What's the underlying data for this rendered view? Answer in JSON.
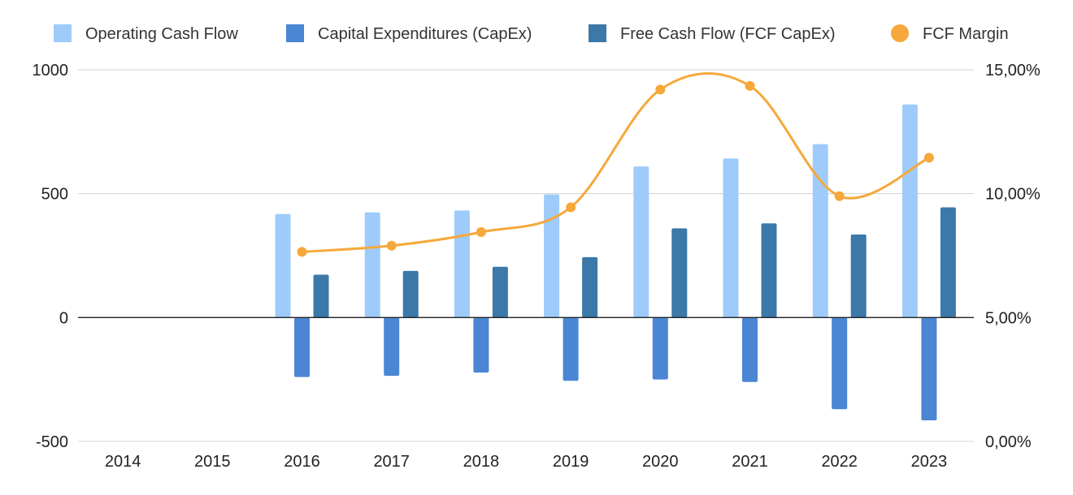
{
  "chart_data": {
    "type": "bar",
    "categories": [
      "2014",
      "2015",
      "2016",
      "2017",
      "2018",
      "2019",
      "2020",
      "2021",
      "2022",
      "2023"
    ],
    "series": [
      {
        "name": "Operating Cash Flow",
        "kind": "bar",
        "axis": "left",
        "color": "#9fcbfb",
        "values": [
          null,
          null,
          418,
          425,
          432,
          497,
          610,
          642,
          700,
          860
        ]
      },
      {
        "name": "Capital Expenditures (CapEx)",
        "kind": "bar",
        "axis": "left",
        "color": "#4a86d4",
        "values": [
          null,
          null,
          -240,
          -235,
          -222,
          -255,
          -250,
          -260,
          -370,
          -415
        ]
      },
      {
        "name": "Free Cash Flow (FCF CapEx)",
        "kind": "bar",
        "axis": "left",
        "color": "#3c78a8",
        "values": [
          null,
          null,
          173,
          188,
          205,
          244,
          360,
          380,
          335,
          445
        ]
      },
      {
        "name": "FCF Margin",
        "kind": "line",
        "axis": "right",
        "color": "#f6a83a",
        "values": [
          null,
          null,
          7.65,
          7.9,
          8.45,
          9.45,
          14.2,
          14.35,
          9.9,
          11.45
        ]
      }
    ],
    "y_left": {
      "min": -500,
      "max": 1000,
      "ticks": [
        1000,
        500,
        0,
        -500
      ],
      "tick_labels": [
        "1000",
        "500",
        "0",
        "-500"
      ]
    },
    "y_right": {
      "min": 0,
      "max": 15,
      "ticks": [
        15,
        10,
        5,
        0
      ],
      "tick_labels": [
        "15,00%",
        "10,00%",
        "5,00%",
        "0,00%"
      ]
    },
    "grid": true,
    "legend": "top",
    "title": "",
    "xlabel": "",
    "ylabel": ""
  }
}
